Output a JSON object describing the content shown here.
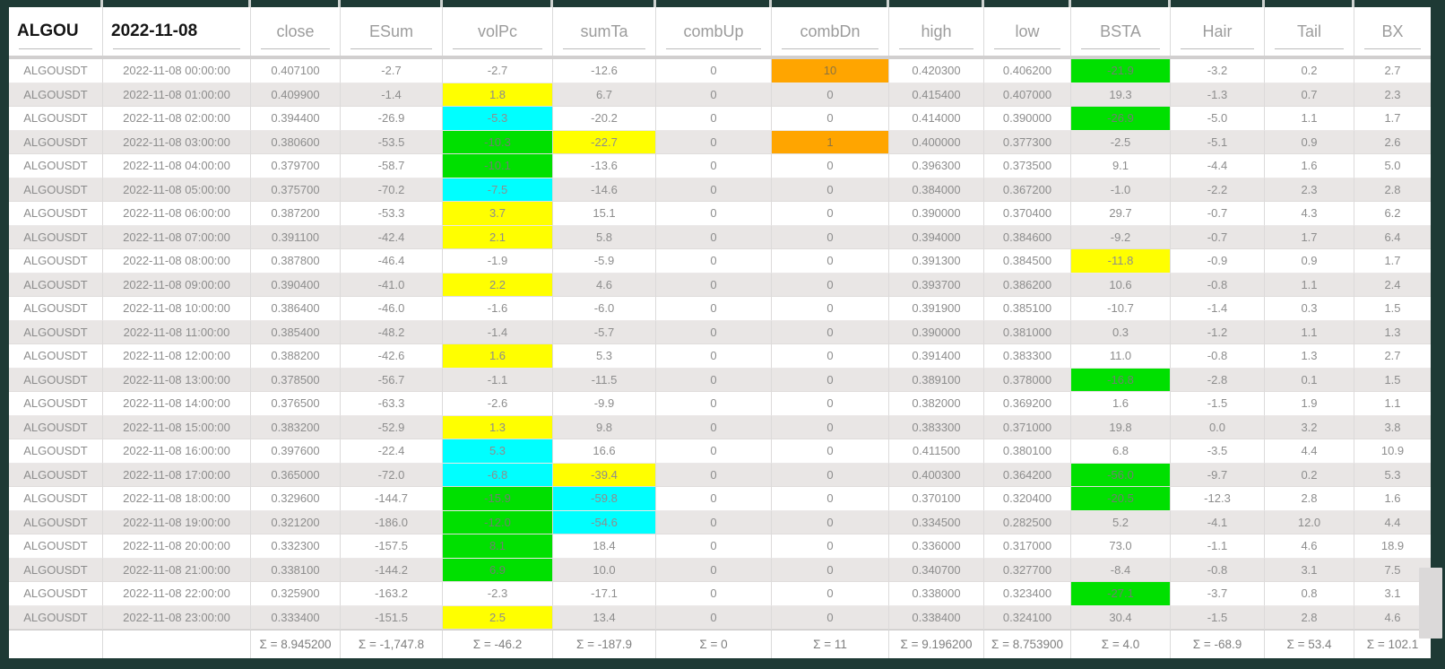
{
  "window": {
    "title_ticker": "ALGOU",
    "title_date": "2022-11-08"
  },
  "table": {
    "columns": [
      "close",
      "ESum",
      "volPc",
      "sumTa",
      "combUp",
      "combDn",
      "high",
      "low",
      "BSTA",
      "Hair",
      "Tail",
      "BX"
    ],
    "rows": [
      {
        "ticker": "ALGOUSDT",
        "time": "2022-11-08 00:00:00",
        "values": [
          "0.407100",
          "-2.7",
          "-2.7",
          "-12.6",
          "0",
          "10",
          "0.420300",
          "0.406200",
          "-21.9",
          "-3.2",
          "0.2",
          "2.7"
        ],
        "hl": {
          "5": "orange",
          "8": "green"
        }
      },
      {
        "ticker": "ALGOUSDT",
        "time": "2022-11-08 01:00:00",
        "values": [
          "0.409900",
          "-1.4",
          "1.8",
          "6.7",
          "0",
          "0",
          "0.415400",
          "0.407000",
          "19.3",
          "-1.3",
          "0.7",
          "2.3"
        ],
        "hl": {
          "2": "yellow"
        }
      },
      {
        "ticker": "ALGOUSDT",
        "time": "2022-11-08 02:00:00",
        "values": [
          "0.394400",
          "-26.9",
          "-5.3",
          "-20.2",
          "0",
          "0",
          "0.414000",
          "0.390000",
          "-26.9",
          "-5.0",
          "1.1",
          "1.7"
        ],
        "hl": {
          "2": "cyan",
          "8": "green"
        }
      },
      {
        "ticker": "ALGOUSDT",
        "time": "2022-11-08 03:00:00",
        "values": [
          "0.380600",
          "-53.5",
          "-10.3",
          "-22.7",
          "0",
          "1",
          "0.400000",
          "0.377300",
          "-2.5",
          "-5.1",
          "0.9",
          "2.6"
        ],
        "hl": {
          "2": "green",
          "3": "yellow",
          "5": "orange"
        }
      },
      {
        "ticker": "ALGOUSDT",
        "time": "2022-11-08 04:00:00",
        "values": [
          "0.379700",
          "-58.7",
          "-10.1",
          "-13.6",
          "0",
          "0",
          "0.396300",
          "0.373500",
          "9.1",
          "-4.4",
          "1.6",
          "5.0"
        ],
        "hl": {
          "2": "green"
        }
      },
      {
        "ticker": "ALGOUSDT",
        "time": "2022-11-08 05:00:00",
        "values": [
          "0.375700",
          "-70.2",
          "-7.5",
          "-14.6",
          "0",
          "0",
          "0.384000",
          "0.367200",
          "-1.0",
          "-2.2",
          "2.3",
          "2.8"
        ],
        "hl": {
          "2": "cyan"
        }
      },
      {
        "ticker": "ALGOUSDT",
        "time": "2022-11-08 06:00:00",
        "values": [
          "0.387200",
          "-53.3",
          "3.7",
          "15.1",
          "0",
          "0",
          "0.390000",
          "0.370400",
          "29.7",
          "-0.7",
          "4.3",
          "6.2"
        ],
        "hl": {
          "2": "yellow"
        }
      },
      {
        "ticker": "ALGOUSDT",
        "time": "2022-11-08 07:00:00",
        "values": [
          "0.391100",
          "-42.4",
          "2.1",
          "5.8",
          "0",
          "0",
          "0.394000",
          "0.384600",
          "-9.2",
          "-0.7",
          "1.7",
          "6.4"
        ],
        "hl": {
          "2": "yellow"
        }
      },
      {
        "ticker": "ALGOUSDT",
        "time": "2022-11-08 08:00:00",
        "values": [
          "0.387800",
          "-46.4",
          "-1.9",
          "-5.9",
          "0",
          "0",
          "0.391300",
          "0.384500",
          "-11.8",
          "-0.9",
          "0.9",
          "1.7"
        ],
        "hl": {
          "8": "yellow"
        }
      },
      {
        "ticker": "ALGOUSDT",
        "time": "2022-11-08 09:00:00",
        "values": [
          "0.390400",
          "-41.0",
          "2.2",
          "4.6",
          "0",
          "0",
          "0.393700",
          "0.386200",
          "10.6",
          "-0.8",
          "1.1",
          "2.4"
        ],
        "hl": {
          "2": "yellow"
        }
      },
      {
        "ticker": "ALGOUSDT",
        "time": "2022-11-08 10:00:00",
        "values": [
          "0.386400",
          "-46.0",
          "-1.6",
          "-6.0",
          "0",
          "0",
          "0.391900",
          "0.385100",
          "-10.7",
          "-1.4",
          "0.3",
          "1.5"
        ],
        "hl": {}
      },
      {
        "ticker": "ALGOUSDT",
        "time": "2022-11-08 11:00:00",
        "values": [
          "0.385400",
          "-48.2",
          "-1.4",
          "-5.7",
          "0",
          "0",
          "0.390000",
          "0.381000",
          "0.3",
          "-1.2",
          "1.1",
          "1.3"
        ],
        "hl": {}
      },
      {
        "ticker": "ALGOUSDT",
        "time": "2022-11-08 12:00:00",
        "values": [
          "0.388200",
          "-42.6",
          "1.6",
          "5.3",
          "0",
          "0",
          "0.391400",
          "0.383300",
          "11.0",
          "-0.8",
          "1.3",
          "2.7"
        ],
        "hl": {
          "2": "yellow"
        }
      },
      {
        "ticker": "ALGOUSDT",
        "time": "2022-11-08 13:00:00",
        "values": [
          "0.378500",
          "-56.7",
          "-1.1",
          "-11.5",
          "0",
          "0",
          "0.389100",
          "0.378000",
          "-16.8",
          "-2.8",
          "0.1",
          "1.5"
        ],
        "hl": {
          "8": "green"
        }
      },
      {
        "ticker": "ALGOUSDT",
        "time": "2022-11-08 14:00:00",
        "values": [
          "0.376500",
          "-63.3",
          "-2.6",
          "-9.9",
          "0",
          "0",
          "0.382000",
          "0.369200",
          "1.6",
          "-1.5",
          "1.9",
          "1.1"
        ],
        "hl": {}
      },
      {
        "ticker": "ALGOUSDT",
        "time": "2022-11-08 15:00:00",
        "values": [
          "0.383200",
          "-52.9",
          "1.3",
          "9.8",
          "0",
          "0",
          "0.383300",
          "0.371000",
          "19.8",
          "0.0",
          "3.2",
          "3.8"
        ],
        "hl": {
          "2": "yellow"
        }
      },
      {
        "ticker": "ALGOUSDT",
        "time": "2022-11-08 16:00:00",
        "values": [
          "0.397600",
          "-22.4",
          "5.3",
          "16.6",
          "0",
          "0",
          "0.411500",
          "0.380100",
          "6.8",
          "-3.5",
          "4.4",
          "10.9"
        ],
        "hl": {
          "2": "cyan"
        }
      },
      {
        "ticker": "ALGOUSDT",
        "time": "2022-11-08 17:00:00",
        "values": [
          "0.365000",
          "-72.0",
          "-6.8",
          "-39.4",
          "0",
          "0",
          "0.400300",
          "0.364200",
          "-56.0",
          "-9.7",
          "0.2",
          "5.3"
        ],
        "hl": {
          "2": "cyan",
          "3": "yellow",
          "8": "green"
        }
      },
      {
        "ticker": "ALGOUSDT",
        "time": "2022-11-08 18:00:00",
        "values": [
          "0.329600",
          "-144.7",
          "-15.9",
          "-59.8",
          "0",
          "0",
          "0.370100",
          "0.320400",
          "-20.5",
          "-12.3",
          "2.8",
          "1.6"
        ],
        "hl": {
          "2": "green",
          "3": "cyan",
          "8": "green"
        }
      },
      {
        "ticker": "ALGOUSDT",
        "time": "2022-11-08 19:00:00",
        "values": [
          "0.321200",
          "-186.0",
          "-12.0",
          "-54.6",
          "0",
          "0",
          "0.334500",
          "0.282500",
          "5.2",
          "-4.1",
          "12.0",
          "4.4"
        ],
        "hl": {
          "2": "green",
          "3": "cyan"
        }
      },
      {
        "ticker": "ALGOUSDT",
        "time": "2022-11-08 20:00:00",
        "values": [
          "0.332300",
          "-157.5",
          "8.1",
          "18.4",
          "0",
          "0",
          "0.336000",
          "0.317000",
          "73.0",
          "-1.1",
          "4.6",
          "18.9"
        ],
        "hl": {
          "2": "green"
        }
      },
      {
        "ticker": "ALGOUSDT",
        "time": "2022-11-08 21:00:00",
        "values": [
          "0.338100",
          "-144.2",
          "6.9",
          "10.0",
          "0",
          "0",
          "0.340700",
          "0.327700",
          "-8.4",
          "-0.8",
          "3.1",
          "7.5"
        ],
        "hl": {
          "2": "green"
        }
      },
      {
        "ticker": "ALGOUSDT",
        "time": "2022-11-08 22:00:00",
        "values": [
          "0.325900",
          "-163.2",
          "-2.3",
          "-17.1",
          "0",
          "0",
          "0.338000",
          "0.323400",
          "-27.1",
          "-3.7",
          "0.8",
          "3.1"
        ],
        "hl": {
          "8": "green"
        }
      },
      {
        "ticker": "ALGOUSDT",
        "time": "2022-11-08 23:00:00",
        "values": [
          "0.333400",
          "-151.5",
          "2.5",
          "13.4",
          "0",
          "0",
          "0.338400",
          "0.324100",
          "30.4",
          "-1.5",
          "2.8",
          "4.6"
        ],
        "hl": {
          "2": "yellow"
        }
      }
    ],
    "footer_sums": [
      "Σ = 8.945200",
      "Σ = -1,747.8",
      "Σ = -46.2",
      "Σ = -187.9",
      "Σ = 0",
      "Σ = 11",
      "Σ = 9.196200",
      "Σ = 8.753900",
      "Σ = 4.0",
      "Σ = -68.9",
      "Σ = 53.4",
      "Σ = 102.1"
    ]
  },
  "colors": {
    "frame": "#1e3a35",
    "stripe_row": "#e9e6e5",
    "highlight_yellow": "#ffff00",
    "highlight_cyan": "#00ffff",
    "highlight_green": "#00e000",
    "highlight_orange": "#ffa500"
  }
}
